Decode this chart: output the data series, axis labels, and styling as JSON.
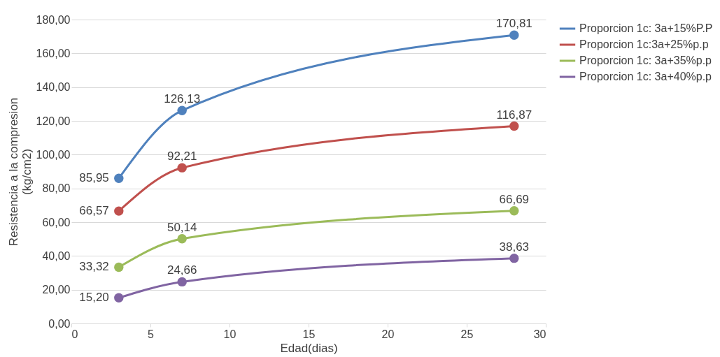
{
  "chart_data": {
    "type": "line",
    "xlabel": "Edad(dias)",
    "ylabel": "Resistencia a la compresion (kg/cm2)",
    "x": [
      3,
      7,
      28
    ],
    "series": [
      {
        "name": "Proporcion 1c: 3a+15%P.P",
        "color": "#4f81bd",
        "values": [
          85.95,
          126.13,
          170.81
        ],
        "value_labels": [
          "85,95",
          "126,13",
          "170,81"
        ]
      },
      {
        "name": "Proporcion 1c:3a+25%p.p",
        "color": "#c0504d",
        "values": [
          66.57,
          92.21,
          116.87
        ],
        "value_labels": [
          "66,57",
          "92,21",
          "116,87"
        ]
      },
      {
        "name": "Proporcion 1c: 3a+35%p.p",
        "color": "#9bbb59",
        "values": [
          33.32,
          50.14,
          66.69
        ],
        "value_labels": [
          "33,32",
          "50,14",
          "66,69"
        ]
      },
      {
        "name": "Proporcion 1c: 3a+40%p.p",
        "color": "#8064a2",
        "values": [
          15.2,
          24.66,
          38.63
        ],
        "value_labels": [
          "15,20",
          "24,66",
          "38,63"
        ]
      }
    ],
    "xlim": [
      0,
      30
    ],
    "xticks": [
      0,
      5,
      10,
      15,
      20,
      25,
      30
    ],
    "ylim": [
      0,
      180
    ],
    "yticks": [
      {
        "value": 0,
        "label": "0,00"
      },
      {
        "value": 20,
        "label": "20,00"
      },
      {
        "value": 40,
        "label": "40,00"
      },
      {
        "value": 60,
        "label": "60,00"
      },
      {
        "value": 80,
        "label": "80,00"
      },
      {
        "value": 100,
        "label": "100,00"
      },
      {
        "value": 120,
        "label": "120,00"
      },
      {
        "value": 140,
        "label": "140,00"
      },
      {
        "value": 160,
        "label": "160,00"
      },
      {
        "value": 180,
        "label": "180,00"
      }
    ],
    "grid": "y",
    "legend": "right",
    "marker": "circle",
    "line_style": "solid"
  }
}
